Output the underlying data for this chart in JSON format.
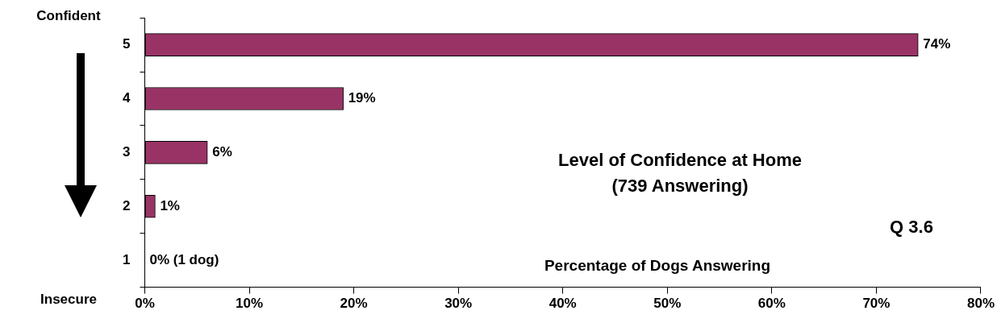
{
  "chart_data": {
    "type": "bar",
    "orientation": "horizontal",
    "title": "Level of Confidence at Home",
    "subtitle": "(739 Answering)",
    "xlabel": "Percentage of Dogs Answering",
    "categories": [
      "5",
      "4",
      "3",
      "2",
      "1"
    ],
    "values": [
      74,
      19,
      6,
      1,
      0
    ],
    "value_labels": [
      "74%",
      "19%",
      "6%",
      "1%",
      "0% (1 dog)"
    ],
    "color": "#993366",
    "xlim": [
      0,
      80
    ],
    "xticks": [
      {
        "value": 0,
        "label": "0%"
      },
      {
        "value": 10,
        "label": "10%"
      },
      {
        "value": 20,
        "label": "20%"
      },
      {
        "value": 30,
        "label": "30%"
      },
      {
        "value": 40,
        "label": "40%"
      },
      {
        "value": 50,
        "label": "50%"
      },
      {
        "value": 60,
        "label": "60%"
      },
      {
        "value": 70,
        "label": "70%"
      },
      {
        "value": 80,
        "label": "80%"
      }
    ],
    "grid": false,
    "legend": false,
    "annotations": [
      "Confident",
      "Insecure",
      "Q 3.6"
    ]
  }
}
